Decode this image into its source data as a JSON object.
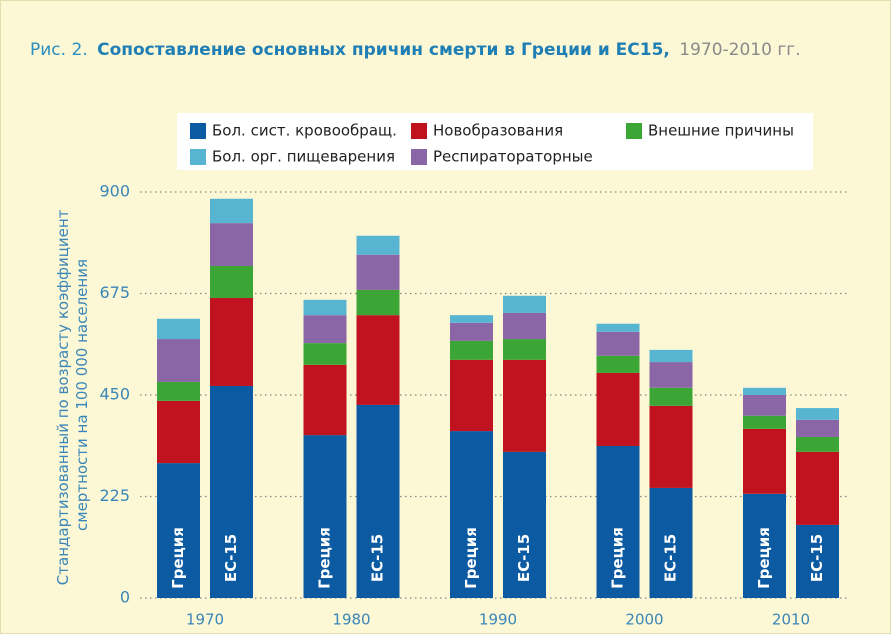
{
  "chart_data": {
    "type": "stacked_grouped_bar",
    "figure_label": "Рис. 2.",
    "title": "Сопоставление основных причин смерти в Греции и ЕС15,",
    "subtitle": "1970-2010 гг.",
    "ylabel": [
      "Стандартизованный по возрасту коэффициент",
      "смертности на 100 000 населения"
    ],
    "categories": [
      "1970",
      "1980",
      "1990",
      "2000",
      "2010"
    ],
    "bar_labels": [
      "Греция",
      "ЕС-15"
    ],
    "ylim": [
      0,
      900
    ],
    "yticks": [
      0,
      225,
      450,
      675,
      900
    ],
    "grid": true,
    "series": [
      {
        "name": "Бол. сист. кровообращ.",
        "color": "#0b5aa2",
        "values": [
          [
            299,
            470
          ],
          [
            361,
            428
          ],
          [
            370,
            324
          ],
          [
            337,
            244
          ],
          [
            231,
            162
          ]
        ]
      },
      {
        "name": "Новобразования",
        "color": "#c1121f",
        "values": [
          [
            138,
            195
          ],
          [
            156,
            199
          ],
          [
            158,
            204
          ],
          [
            162,
            182
          ],
          [
            144,
            162
          ]
        ]
      },
      {
        "name": "Внешние причины",
        "color": "#3ba535",
        "values": [
          [
            42,
            71
          ],
          [
            48,
            56
          ],
          [
            42,
            46
          ],
          [
            38,
            40
          ],
          [
            29,
            33
          ]
        ]
      },
      {
        "name": "Респиратораторные",
        "color": "#8a66a7",
        "values": [
          [
            95,
            95
          ],
          [
            62,
            78
          ],
          [
            40,
            58
          ],
          [
            53,
            57
          ],
          [
            46,
            38
          ]
        ]
      },
      {
        "name": "Бол. орг. пищеварения",
        "color": "#57b5d2",
        "values": [
          [
            45,
            54
          ],
          [
            34,
            42
          ],
          [
            17,
            38
          ],
          [
            18,
            27
          ],
          [
            16,
            26
          ]
        ]
      }
    ]
  }
}
